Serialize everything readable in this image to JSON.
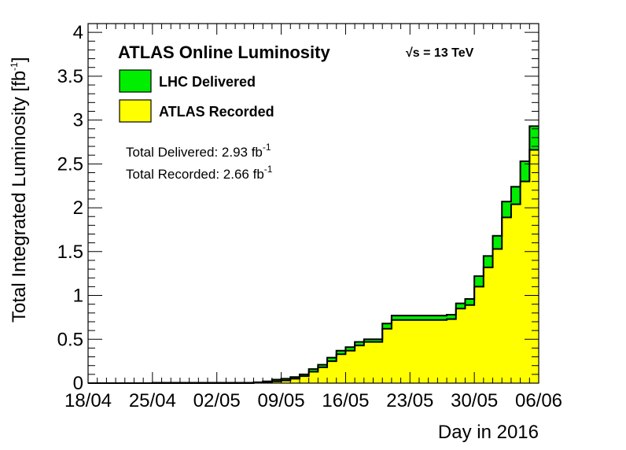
{
  "chart_data": {
    "type": "area",
    "title": "ATLAS Online Luminosity",
    "energy_label": "√s = 13 TeV",
    "xlabel": "Day in 2016",
    "ylabel": "Total Integrated Luminosity [fb",
    "ylabel_sup": "-1",
    "ylabel_close": "]",
    "xlim": [
      0,
      49
    ],
    "ylim": [
      0,
      4.1
    ],
    "x_ticks": [
      {
        "label": "18/04",
        "value": 0
      },
      {
        "label": "25/04",
        "value": 7
      },
      {
        "label": "02/05",
        "value": 14
      },
      {
        "label": "09/05",
        "value": 21
      },
      {
        "label": "16/05",
        "value": 28
      },
      {
        "label": "23/05",
        "value": 35
      },
      {
        "label": "30/05",
        "value": 42
      },
      {
        "label": "06/06",
        "value": 49
      }
    ],
    "y_ticks": [
      {
        "label": "0",
        "value": 0
      },
      {
        "label": "0.5",
        "value": 0.5
      },
      {
        "label": "1",
        "value": 1
      },
      {
        "label": "1.5",
        "value": 1.5
      },
      {
        "label": "2",
        "value": 2
      },
      {
        "label": "2.5",
        "value": 2.5
      },
      {
        "label": "3",
        "value": 3
      },
      {
        "label": "3.5",
        "value": 3.5
      },
      {
        "label": "4",
        "value": 4
      }
    ],
    "legend_placement": "top-left",
    "series": [
      {
        "name": "LHC Delivered",
        "color": "#00ee00",
        "values": [
          0,
          0,
          0,
          0,
          0,
          0,
          0,
          0.005,
          0.005,
          0.005,
          0.005,
          0.005,
          0.005,
          0.005,
          0.005,
          0.005,
          0.005,
          0.005,
          0.01,
          0.02,
          0.04,
          0.05,
          0.07,
          0.1,
          0.16,
          0.21,
          0.29,
          0.37,
          0.41,
          0.47,
          0.5,
          0.5,
          0.68,
          0.77,
          0.77,
          0.77,
          0.77,
          0.77,
          0.77,
          0.78,
          0.91,
          0.96,
          1.22,
          1.45,
          1.68,
          2.07,
          2.24,
          2.53,
          2.93
        ]
      },
      {
        "name": "ATLAS Recorded",
        "color": "#ffff00",
        "values": [
          0,
          0,
          0,
          0,
          0,
          0,
          0,
          0,
          0,
          0,
          0,
          0,
          0,
          0,
          0,
          0,
          0,
          0,
          0.005,
          0.01,
          0.02,
          0.03,
          0.05,
          0.08,
          0.13,
          0.18,
          0.25,
          0.33,
          0.37,
          0.43,
          0.47,
          0.47,
          0.62,
          0.72,
          0.72,
          0.72,
          0.72,
          0.72,
          0.72,
          0.73,
          0.85,
          0.89,
          1.1,
          1.32,
          1.53,
          1.89,
          2.04,
          2.3,
          2.66
        ]
      }
    ],
    "annotations": {
      "total_delivered_label": "Total Delivered: 2.93 fb",
      "total_delivered_sup": "-1",
      "total_recorded_label": "Total Recorded: 2.66 fb",
      "total_recorded_sup": "-1"
    }
  }
}
